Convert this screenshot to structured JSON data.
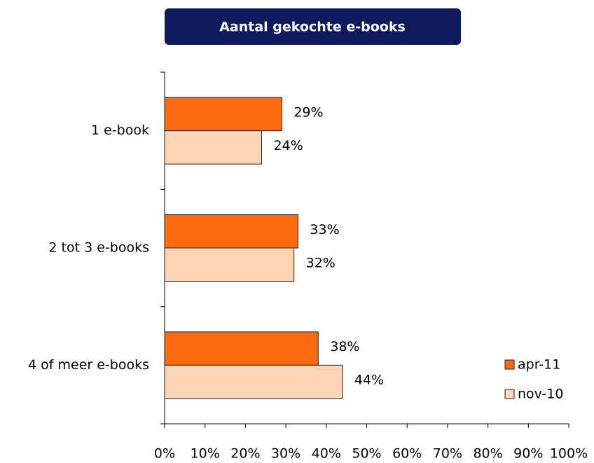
{
  "chart_data": {
    "type": "bar",
    "orientation": "horizontal",
    "title": "Aantal gekochte e-books",
    "categories": [
      "1 e-book",
      "2 tot 3 e-books",
      "4 of meer e-books"
    ],
    "series": [
      {
        "name": "apr-11",
        "color": "#ff6a10",
        "values": [
          29,
          33,
          38
        ],
        "value_labels": [
          "29%",
          "33%",
          "38%"
        ]
      },
      {
        "name": "nov-10",
        "color": "#fdd5b5",
        "values": [
          24,
          32,
          44
        ],
        "value_labels": [
          "24%",
          "32%",
          "44%"
        ]
      }
    ],
    "xlim": [
      0,
      100
    ],
    "xticks": [
      {
        "value": 0,
        "label": "0%"
      },
      {
        "value": 10,
        "label": "10%"
      },
      {
        "value": 20,
        "label": "20%"
      },
      {
        "value": 30,
        "label": "30%"
      },
      {
        "value": 40,
        "label": "40%"
      },
      {
        "value": 50,
        "label": "50%"
      },
      {
        "value": 60,
        "label": "60%"
      },
      {
        "value": 70,
        "label": "70%"
      },
      {
        "value": 80,
        "label": "80%"
      },
      {
        "value": 90,
        "label": "90%"
      },
      {
        "value": 100,
        "label": "100%"
      }
    ],
    "legend": "lower right"
  }
}
